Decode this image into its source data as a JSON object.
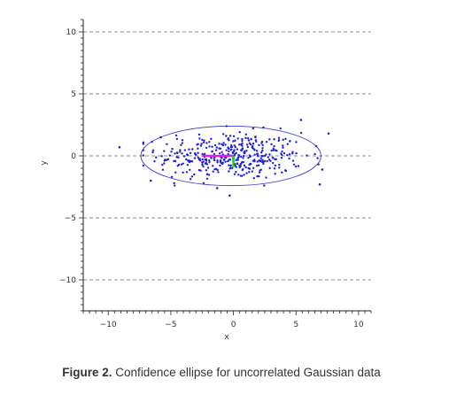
{
  "caption": {
    "label": "Figure 2.",
    "text": "Confidence ellipse for uncorrelated Gaussian data"
  },
  "chart_data": {
    "type": "scatter",
    "xlabel": "x",
    "ylabel": "y",
    "xlim": [
      -12,
      11
    ],
    "ylim": [
      -12.5,
      11
    ],
    "xticks": [
      -10,
      -5,
      0,
      5,
      10
    ],
    "yticks": [
      -10,
      -5,
      0,
      5,
      10
    ],
    "grid": "horizontal dashed lines at y ticks",
    "point_color": "#1f1fe0",
    "ellipse": {
      "cx": -0.2,
      "cy": 0,
      "rx": 7.2,
      "ry": 2.4,
      "color": "#3a3acc"
    },
    "axis_segments": [
      {
        "from": [
          -2.5,
          0
        ],
        "to": [
          0,
          0
        ],
        "color": "#e020e0"
      },
      {
        "from": [
          0,
          0
        ],
        "to": [
          0,
          -0.9
        ],
        "color": "#22cc22"
      }
    ],
    "outliers": [
      {
        "x": -9.1,
        "y": 0.7
      },
      {
        "x": 5.4,
        "y": 2.9
      },
      {
        "x": 7.6,
        "y": 1.8
      },
      {
        "x": 7.1,
        "y": -1.1
      },
      {
        "x": 6.9,
        "y": -2.3
      },
      {
        "x": -6.6,
        "y": -2.0
      },
      {
        "x": -0.3,
        "y": -3.2
      },
      {
        "x": -1.3,
        "y": -2.6
      },
      {
        "x": -5.8,
        "y": 1.5
      }
    ],
    "n_points": 400
  }
}
